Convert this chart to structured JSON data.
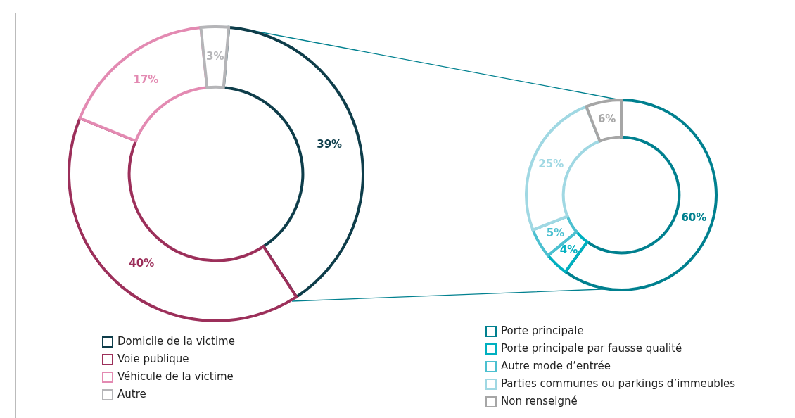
{
  "chart_data": [
    {
      "type": "donut",
      "categories": [
        "Domicile de la victime",
        "Voie publique",
        "Véhicule de la victime",
        "Autre"
      ],
      "values": [
        39,
        40,
        17,
        3
      ],
      "colors": [
        "#0e3d4a",
        "#9c2f5a",
        "#e38ab2",
        "#b5b5b8"
      ],
      "value_labels": [
        "39%",
        "40%",
        "17%",
        "3%"
      ],
      "legend": "bottom left"
    },
    {
      "type": "donut",
      "categories": [
        "Porte principale",
        "Porte principale par fausse qualité",
        "Autre mode d’entrée",
        "Parties communes ou parkings d’immeubles",
        "Non renseigné"
      ],
      "values": [
        60,
        4,
        5,
        25,
        6
      ],
      "colors": [
        "#00808f",
        "#00b0c0",
        "#4cc0d0",
        "#a0d8e3",
        "#a6a6a6"
      ],
      "value_labels": [
        "60%",
        "4%",
        "5%",
        "25%",
        "6%"
      ],
      "legend": "bottom left"
    }
  ]
}
